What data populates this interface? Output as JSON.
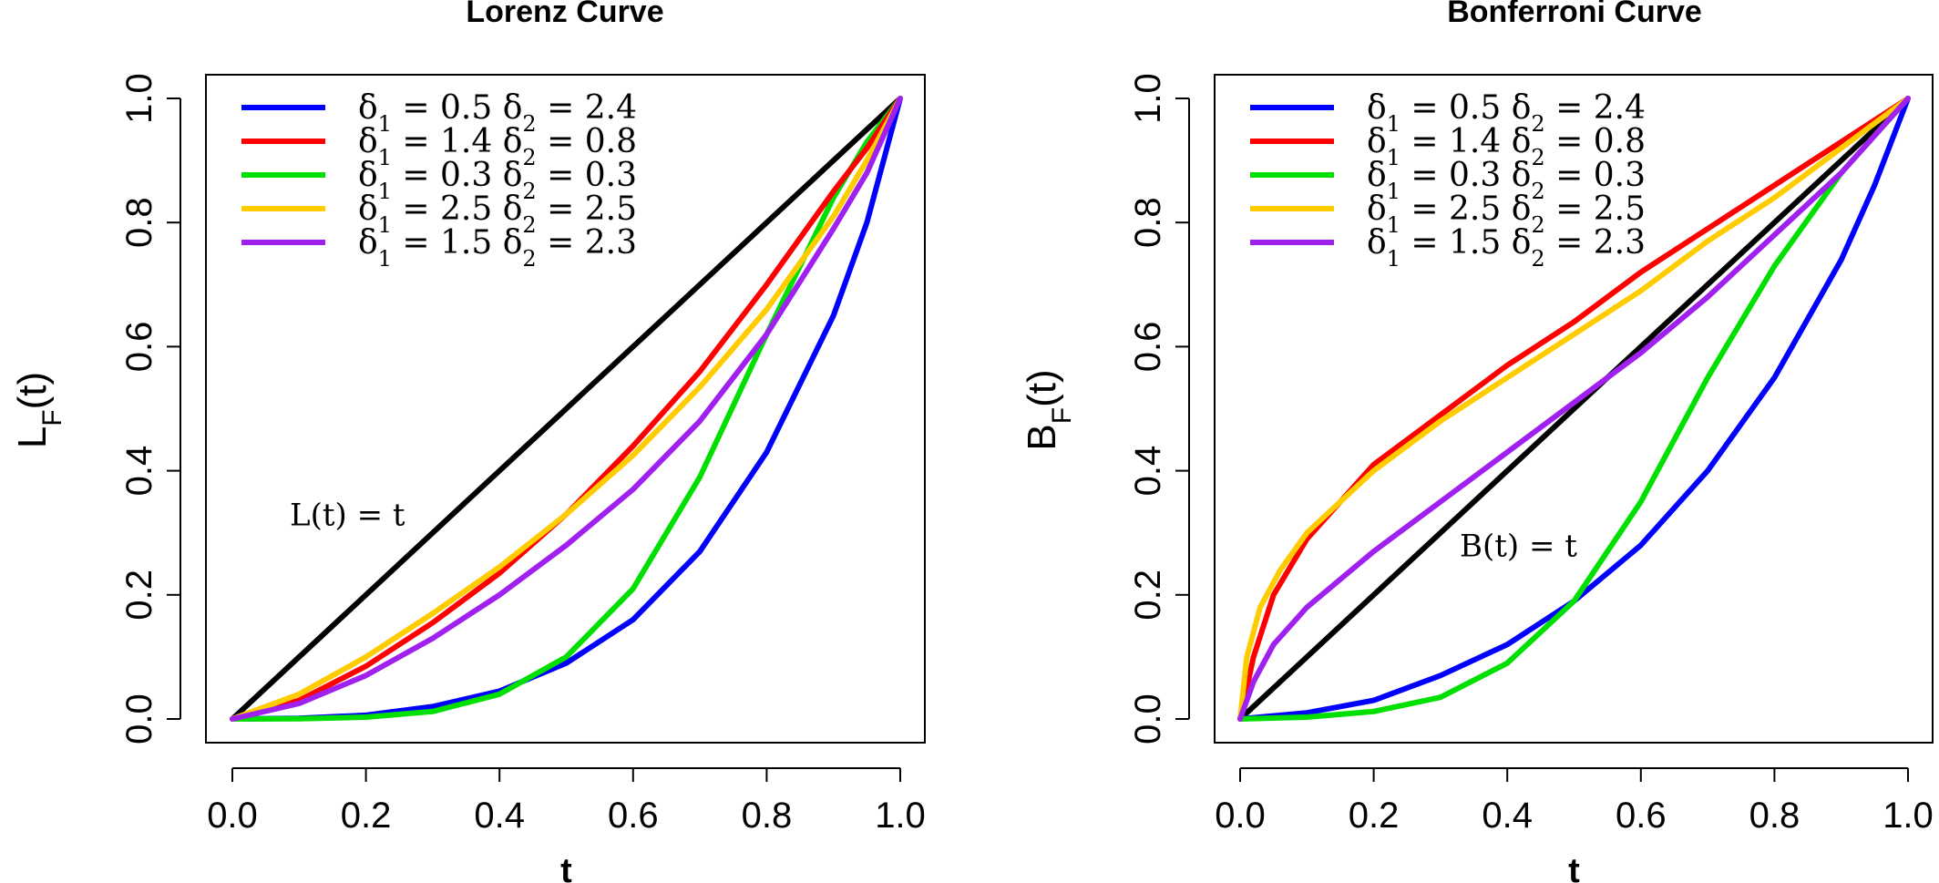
{
  "figure": {
    "background": "#ffffff"
  },
  "chart_data": [
    {
      "type": "line",
      "title": "Lorenz Curve",
      "xlabel": "t",
      "ylabel": {
        "main": "L",
        "sub": "F",
        "suffix": "(t)"
      },
      "xlim": [
        0,
        1
      ],
      "ylim": [
        0,
        1
      ],
      "xticks": [
        "0.0",
        "0.2",
        "0.4",
        "0.6",
        "0.8",
        "1.0"
      ],
      "yticks": [
        "0.0",
        "0.2",
        "0.4",
        "0.6",
        "0.8",
        "1.0"
      ],
      "grid": false,
      "legend_position": "top-left",
      "annotation": {
        "text": "L(t) = t",
        "x": 0.18,
        "y": 0.33
      },
      "series": [
        {
          "name": "δ1 = 0.5 δ2 = 2.4",
          "legend": {
            "d1": "0.5",
            "d2": "2.4"
          },
          "color": "#0000ff",
          "x": [
            0,
            0.1,
            0.2,
            0.3,
            0.4,
            0.5,
            0.6,
            0.7,
            0.8,
            0.9,
            0.95,
            1.0
          ],
          "y": [
            0,
            0.001,
            0.006,
            0.02,
            0.045,
            0.09,
            0.16,
            0.27,
            0.43,
            0.65,
            0.8,
            1.0
          ]
        },
        {
          "name": "δ1 = 1.4 δ2 = 0.8",
          "legend": {
            "d1": "1.4",
            "d2": "0.8"
          },
          "color": "#ff0000",
          "x": [
            0,
            0.1,
            0.2,
            0.3,
            0.4,
            0.5,
            0.6,
            0.7,
            0.8,
            0.9,
            0.95,
            1.0
          ],
          "y": [
            0,
            0.03,
            0.085,
            0.155,
            0.235,
            0.33,
            0.44,
            0.56,
            0.7,
            0.85,
            0.92,
            1.0
          ]
        },
        {
          "name": "δ1 = 0.3 δ2 = 0.3",
          "legend": {
            "d1": "0.3",
            "d2": "0.3"
          },
          "color": "#00e000",
          "x": [
            0,
            0.1,
            0.2,
            0.3,
            0.4,
            0.5,
            0.6,
            0.7,
            0.8,
            0.9,
            0.95,
            1.0
          ],
          "y": [
            0,
            0.0005,
            0.003,
            0.012,
            0.04,
            0.1,
            0.21,
            0.39,
            0.62,
            0.84,
            0.93,
            1.0
          ]
        },
        {
          "name": "δ1 = 2.5 δ2 = 2.5",
          "legend": {
            "d1": "2.5",
            "d2": "2.5"
          },
          "color": "#ffcc00",
          "x": [
            0,
            0.1,
            0.2,
            0.3,
            0.4,
            0.5,
            0.6,
            0.7,
            0.8,
            0.9,
            0.95,
            1.0
          ],
          "y": [
            0,
            0.04,
            0.1,
            0.17,
            0.245,
            0.33,
            0.425,
            0.535,
            0.66,
            0.81,
            0.9,
            1.0
          ]
        },
        {
          "name": "δ1 = 1.5 δ2 = 2.3",
          "legend": {
            "d1": "1.5",
            "d2": "2.3"
          },
          "color": "#a020f0",
          "x": [
            0,
            0.1,
            0.2,
            0.3,
            0.4,
            0.5,
            0.6,
            0.7,
            0.8,
            0.9,
            0.95,
            1.0
          ],
          "y": [
            0,
            0.025,
            0.07,
            0.13,
            0.2,
            0.28,
            0.37,
            0.48,
            0.62,
            0.79,
            0.88,
            1.0
          ]
        },
        {
          "name": "",
          "color": "#000000",
          "x": [
            0,
            1
          ],
          "y": [
            0,
            1
          ]
        }
      ]
    },
    {
      "type": "line",
      "title": "Bonferroni Curve",
      "xlabel": "t",
      "ylabel": {
        "main": "B",
        "sub": "F",
        "suffix": "(t)"
      },
      "xlim": [
        0,
        1
      ],
      "ylim": [
        0,
        1
      ],
      "xticks": [
        "0.0",
        "0.2",
        "0.4",
        "0.6",
        "0.8",
        "1.0"
      ],
      "yticks": [
        "0.0",
        "0.2",
        "0.4",
        "0.6",
        "0.8",
        "1.0"
      ],
      "grid": false,
      "legend_position": "top-left",
      "annotation": {
        "text": "B(t) = t",
        "x": 0.42,
        "y": 0.28
      },
      "series": [
        {
          "name": "δ1 = 0.5 δ2 = 2.4",
          "legend": {
            "d1": "0.5",
            "d2": "2.4"
          },
          "color": "#0000ff",
          "x": [
            0,
            0.1,
            0.2,
            0.3,
            0.4,
            0.5,
            0.6,
            0.7,
            0.8,
            0.9,
            0.95,
            1.0
          ],
          "y": [
            0,
            0.01,
            0.03,
            0.07,
            0.12,
            0.19,
            0.28,
            0.4,
            0.55,
            0.74,
            0.86,
            1.0
          ]
        },
        {
          "name": "δ1 = 1.4 δ2 = 0.8",
          "legend": {
            "d1": "1.4",
            "d2": "0.8"
          },
          "color": "#ff0000",
          "x": [
            0,
            0.02,
            0.05,
            0.1,
            0.2,
            0.3,
            0.4,
            0.5,
            0.6,
            0.7,
            0.8,
            0.9,
            1.0
          ],
          "y": [
            0,
            0.1,
            0.2,
            0.29,
            0.41,
            0.49,
            0.57,
            0.64,
            0.72,
            0.79,
            0.86,
            0.93,
            1.0
          ]
        },
        {
          "name": "δ1 = 0.3 δ2 = 0.3",
          "legend": {
            "d1": "0.3",
            "d2": "0.3"
          },
          "color": "#00e000",
          "x": [
            0,
            0.1,
            0.2,
            0.3,
            0.4,
            0.5,
            0.6,
            0.7,
            0.8,
            0.9,
            0.95,
            1.0
          ],
          "y": [
            0,
            0.003,
            0.012,
            0.035,
            0.09,
            0.19,
            0.35,
            0.55,
            0.73,
            0.88,
            0.94,
            1.0
          ]
        },
        {
          "name": "δ1 = 2.5 δ2 = 2.5",
          "legend": {
            "d1": "2.5",
            "d2": "2.5"
          },
          "color": "#ffcc00",
          "x": [
            0,
            0.01,
            0.03,
            0.06,
            0.1,
            0.2,
            0.3,
            0.4,
            0.5,
            0.6,
            0.7,
            0.8,
            0.9,
            1.0
          ],
          "y": [
            0,
            0.1,
            0.18,
            0.24,
            0.3,
            0.4,
            0.48,
            0.55,
            0.62,
            0.69,
            0.77,
            0.84,
            0.92,
            1.0
          ]
        },
        {
          "name": "δ1 = 1.5 δ2 = 2.3",
          "legend": {
            "d1": "1.5",
            "d2": "2.3"
          },
          "color": "#a020f0",
          "x": [
            0,
            0.02,
            0.05,
            0.1,
            0.2,
            0.3,
            0.4,
            0.5,
            0.6,
            0.7,
            0.8,
            0.9,
            1.0
          ],
          "y": [
            0,
            0.06,
            0.12,
            0.18,
            0.27,
            0.35,
            0.43,
            0.51,
            0.59,
            0.68,
            0.78,
            0.88,
            1.0
          ]
        },
        {
          "name": "",
          "color": "#000000",
          "x": [
            0,
            1
          ],
          "y": [
            0,
            1
          ]
        }
      ]
    }
  ]
}
